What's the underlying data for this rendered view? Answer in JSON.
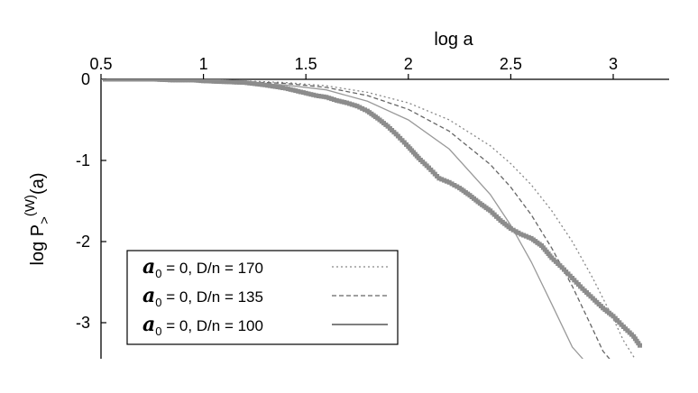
{
  "chart_data": {
    "type": "line",
    "title": "",
    "xlabel": "log a",
    "ylabel": {
      "main": "log P",
      "sub": ">",
      "sup": "(W)",
      "tail": "(a)"
    },
    "xlim": [
      0.5,
      3.2
    ],
    "ylim": [
      -3.4,
      0
    ],
    "x_ticks": [
      0.5,
      1,
      1.5,
      2,
      2.5,
      3
    ],
    "x_tick_labels": [
      "0.5",
      "1",
      "1.5",
      "2",
      "2.5",
      "3"
    ],
    "y_ticks": [
      0,
      -1,
      -2,
      -3
    ],
    "y_tick_labels": [
      "0",
      "-1",
      "-2",
      "-3"
    ],
    "x_axis_position": "top",
    "grid": false,
    "legend_position": "bottom-left",
    "empirical_series": {
      "color": "#8c8c8c",
      "marker": "square",
      "x": [
        0.52,
        0.6,
        0.7,
        0.76,
        0.85,
        0.95,
        1.0,
        1.1,
        1.2,
        1.3,
        1.4,
        1.5,
        1.55,
        1.6,
        1.65,
        1.7,
        1.75,
        1.8,
        1.85,
        1.9,
        1.95,
        2.0,
        2.05,
        2.1,
        2.15,
        2.2,
        2.25,
        2.3,
        2.35,
        2.4,
        2.45,
        2.5,
        2.55,
        2.6,
        2.65,
        2.7,
        2.75,
        2.8,
        2.85,
        2.9,
        2.95,
        3.0,
        3.05,
        3.1,
        3.13
      ],
      "y": [
        0.0,
        0.0,
        0.0,
        0.0,
        -0.01,
        -0.01,
        -0.02,
        -0.03,
        -0.04,
        -0.07,
        -0.11,
        -0.17,
        -0.2,
        -0.22,
        -0.26,
        -0.29,
        -0.33,
        -0.39,
        -0.48,
        -0.58,
        -0.7,
        -0.83,
        -0.97,
        -1.09,
        -1.22,
        -1.27,
        -1.34,
        -1.43,
        -1.53,
        -1.62,
        -1.74,
        -1.84,
        -1.91,
        -1.96,
        -2.05,
        -2.2,
        -2.32,
        -2.45,
        -2.58,
        -2.7,
        -2.82,
        -2.92,
        -3.05,
        -3.17,
        -3.28
      ]
    },
    "series": [
      {
        "name_sym": "a",
        "name_sub": "0",
        "name": " = 0,   D/n = 170",
        "dash": "2,3",
        "color": "#888888",
        "x": [
          0.5,
          1.0,
          1.2,
          1.4,
          1.6,
          1.8,
          2.0,
          2.2,
          2.4,
          2.5,
          2.6,
          2.7,
          2.8,
          2.9,
          3.0,
          3.05,
          3.1,
          3.13
        ],
        "y": [
          0.0,
          -0.01,
          -0.02,
          -0.04,
          -0.08,
          -0.16,
          -0.29,
          -0.5,
          -0.82,
          -1.04,
          -1.3,
          -1.62,
          -2.0,
          -2.45,
          -2.95,
          -3.22,
          -3.42,
          -3.5
        ]
      },
      {
        "name_sym": "a",
        "name_sub": "0",
        "name": " = 0,   D/n = 135",
        "dash": "5,3",
        "color": "#666666",
        "x": [
          0.5,
          1.0,
          1.2,
          1.4,
          1.6,
          1.8,
          2.0,
          2.2,
          2.4,
          2.5,
          2.6,
          2.7,
          2.8,
          2.9,
          2.95,
          3.0,
          3.04
        ],
        "y": [
          0.0,
          -0.01,
          -0.03,
          -0.05,
          -0.1,
          -0.2,
          -0.37,
          -0.64,
          -1.05,
          -1.33,
          -1.67,
          -2.08,
          -2.55,
          -3.08,
          -3.35,
          -3.5,
          -3.6
        ]
      },
      {
        "name_sym": "a",
        "name_sub": "0",
        "name": " = 0,   D/n = 100",
        "dash": "",
        "color": "#999999",
        "x": [
          0.5,
          1.0,
          1.2,
          1.4,
          1.6,
          1.8,
          2.0,
          2.2,
          2.4,
          2.5,
          2.6,
          2.7,
          2.8,
          2.87,
          2.91
        ],
        "y": [
          0.0,
          -0.02,
          -0.04,
          -0.07,
          -0.13,
          -0.27,
          -0.5,
          -0.86,
          -1.42,
          -1.8,
          -2.25,
          -2.77,
          -3.3,
          -3.5,
          -3.6
        ]
      }
    ]
  }
}
